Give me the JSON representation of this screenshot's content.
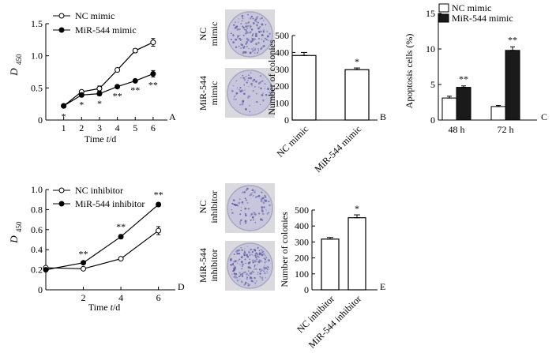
{
  "chart_data": [
    {
      "panel_id": "A",
      "type": "line",
      "ylabel_main": "D",
      "ylabel_sub": "450",
      "xlabel": "Time t/d",
      "x": [
        1,
        2,
        3,
        4,
        5,
        6
      ],
      "xlim": [
        0,
        6.8
      ],
      "ylim": [
        0,
        1.5
      ],
      "xticks": [
        "1",
        "2",
        "3",
        "4",
        "5",
        "6"
      ],
      "yticks": [
        "0",
        "0.5",
        "1.0",
        "1.5"
      ],
      "ytick_values": [
        0,
        0.5,
        1.0,
        1.5
      ],
      "legend": [
        "NC mimic",
        "MiR-544 mimic"
      ],
      "series": [
        {
          "name": "NC mimic",
          "marker": "open-circle",
          "values": [
            0.22,
            0.44,
            0.49,
            0.78,
            1.08,
            1.21
          ],
          "errors": [
            0.02,
            0.02,
            0.04,
            0.03,
            0.03,
            0.06
          ]
        },
        {
          "name": "MiR-544 mimic",
          "marker": "filled-circle",
          "values": [
            0.22,
            0.39,
            0.41,
            0.52,
            0.61,
            0.72
          ],
          "errors": [
            0.03,
            0.03,
            0.03,
            0.02,
            0.02,
            0.05
          ]
        }
      ],
      "significance": [
        "*",
        "*",
        "*",
        "**",
        "**",
        "**"
      ]
    },
    {
      "panel_id": "B",
      "type": "bar",
      "ylabel": "Number of colonies",
      "categories": [
        "NC mimic",
        "MiR-544 mimic"
      ],
      "values": [
        382,
        298
      ],
      "errors": [
        18,
        10
      ],
      "ylim": [
        0,
        500
      ],
      "yticks": [
        "0",
        "100",
        "200",
        "300",
        "400",
        "500"
      ],
      "ytick_values": [
        0,
        100,
        200,
        300,
        400,
        500
      ],
      "significance": [
        "",
        "*"
      ],
      "dish_labels": [
        "NC mimic",
        "MiR-544 mimic"
      ]
    },
    {
      "panel_id": "C",
      "type": "bar",
      "ylabel": "Apoptosis cells (%)",
      "categories": [
        "48 h",
        "72 h"
      ],
      "legend": [
        "NC mimic",
        "MiR-544 mimic"
      ],
      "series": [
        {
          "name": "NC mimic",
          "values": [
            3.1,
            1.9
          ],
          "errors": [
            0.25,
            0.15
          ]
        },
        {
          "name": "MiR-544 mimic",
          "values": [
            4.6,
            9.8
          ],
          "errors": [
            0.2,
            0.5
          ]
        }
      ],
      "ylim": [
        0,
        15
      ],
      "yticks": [
        "0",
        "5",
        "10",
        "15"
      ],
      "ytick_values": [
        0,
        5,
        10,
        15
      ],
      "significance": [
        "**",
        "**"
      ]
    },
    {
      "panel_id": "D",
      "type": "line",
      "ylabel_main": "D",
      "ylabel_sub": "450",
      "xlabel": "Time t/d",
      "x": [
        0,
        2,
        4,
        6
      ],
      "xlim": [
        0,
        6.9
      ],
      "ylim": [
        0,
        1.0
      ],
      "xticks": [
        "2",
        "4",
        "6"
      ],
      "xtick_values": [
        2,
        4,
        6
      ],
      "yticks": [
        "0",
        "0.2",
        "0.4",
        "0.6",
        "0.8",
        "1.0"
      ],
      "ytick_values": [
        0,
        0.2,
        0.4,
        0.6,
        0.8,
        1.0
      ],
      "legend": [
        "NC inhibitor",
        "MiR-544 inhibitor"
      ],
      "series": [
        {
          "name": "NC inhibitor",
          "marker": "open-circle",
          "values": [
            0.22,
            0.21,
            0.31,
            0.59
          ],
          "errors": [
            0.01,
            0.01,
            0.01,
            0.04
          ]
        },
        {
          "name": "MiR-544 inhibitor",
          "marker": "filled-circle",
          "values": [
            0.2,
            0.27,
            0.53,
            0.85
          ],
          "errors": [
            0.01,
            0.01,
            0.02,
            0.02
          ]
        }
      ],
      "significance": [
        "",
        "**",
        "**",
        "**"
      ]
    },
    {
      "panel_id": "E",
      "type": "bar",
      "ylabel": "Number of colonies",
      "categories": [
        "NC inhibitor",
        "MiR-544 inhibitor"
      ],
      "values": [
        318,
        452
      ],
      "errors": [
        10,
        18
      ],
      "ylim": [
        0,
        500
      ],
      "yticks": [
        "0",
        "100",
        "200",
        "300",
        "400",
        "500"
      ],
      "ytick_values": [
        0,
        100,
        200,
        300,
        400,
        500
      ],
      "significance": [
        "",
        "*"
      ],
      "dish_labels": [
        "NC inhibitor",
        "MiR-544 inhibitor"
      ]
    }
  ]
}
